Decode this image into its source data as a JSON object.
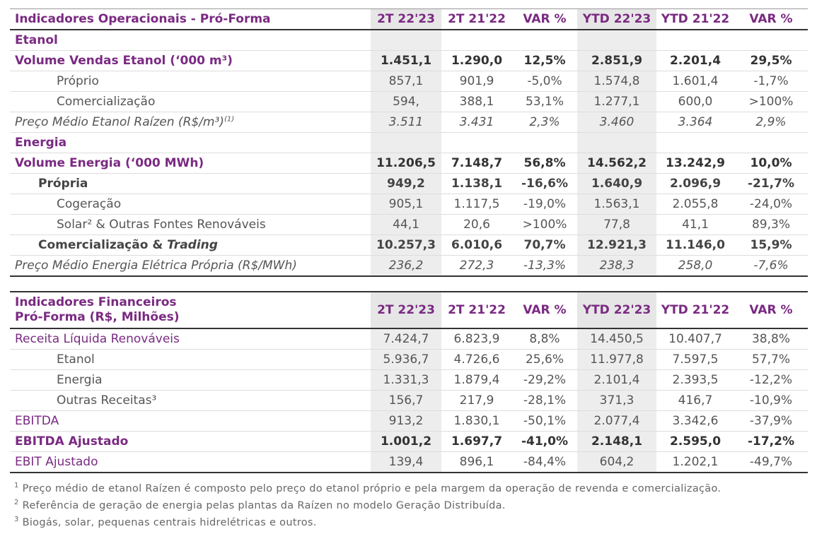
{
  "table1": {
    "header": [
      "Indicadores Operacionais - Pró-Forma",
      "2T 22'23",
      "2T 21'22",
      "VAR %",
      "YTD 22'23",
      "YTD 21'22",
      "VAR %"
    ],
    "rows": [
      {
        "label": "Etanol"
      },
      {
        "label": "Volume Vendas Etanol (‘000 m³)",
        "values": [
          "1.451,1",
          "1.290,0",
          "12,5%",
          "2.851,9",
          "2.201,4",
          "29,5%"
        ]
      },
      {
        "label": "Próprio",
        "values": [
          "857,1",
          "901,9",
          "-5,0%",
          "1.574,8",
          "1.601,4",
          "-1,7%"
        ]
      },
      {
        "label": "Comercialização",
        "values": [
          "594,",
          "388,1",
          "53,1%",
          "1.277,1",
          "600,0",
          ">100%"
        ]
      },
      {
        "label": "Preço Médio Etanol Raízen (R$/m³)",
        "note": "(1)",
        "values": [
          "3.511",
          "3.431",
          "2,3%",
          "3.460",
          "3.364",
          "2,9%"
        ]
      },
      {
        "label": "Energia"
      },
      {
        "label": "Volume Energia (‘000 MWh)",
        "values": [
          "11.206,5",
          "7.148,7",
          "56,8%",
          "14.562,2",
          "13.242,9",
          "10,0%"
        ]
      },
      {
        "label": "Própria",
        "values": [
          "949,2",
          "1.138,1",
          "-16,6%",
          "1.640,9",
          "2.096,9",
          "-21,7%"
        ]
      },
      {
        "label": "Cogeração",
        "values": [
          "905,1",
          "1.117,5",
          "-19,0%",
          "1.563,1",
          "2.055,8",
          "-24,0%"
        ]
      },
      {
        "label": "Solar² & Outras Fontes Renováveis",
        "values": [
          "44,1",
          "20,6",
          ">100%",
          "77,8",
          "41,1",
          "89,3%"
        ]
      },
      {
        "label": "Comercialização &",
        "label_italic": "Trading",
        "values": [
          "10.257,3",
          "6.010,6",
          "70,7%",
          "12.921,3",
          "11.146,0",
          "15,9%"
        ]
      },
      {
        "label": "Preço Médio Energia Elétrica Própria (R$/MWh)",
        "values": [
          "236,2",
          "272,3",
          "-13,3%",
          "238,3",
          "258,0",
          "-7,6%"
        ]
      }
    ]
  },
  "table2": {
    "title": [
      "Indicadores Financeiros",
      "Pró-Forma (R$, Milhões)"
    ],
    "header": [
      "2T 22'23",
      "2T 21'22",
      "VAR %",
      "YTD 22'23",
      "YTD 21'22",
      "VAR %"
    ],
    "rows": [
      {
        "label": "Receita Líquida Renováveis",
        "values": [
          "7.424,7",
          "6.823,9",
          "8,8%",
          "14.450,5",
          "10.407,7",
          "38,8%"
        ]
      },
      {
        "label": "Etanol",
        "values": [
          "5.936,7",
          "4.726,6",
          "25,6%",
          "11.977,8",
          "7.597,5",
          "57,7%"
        ]
      },
      {
        "label": "Energia",
        "values": [
          "1.331,3",
          "1.879,4",
          "-29,2%",
          "2.101,4",
          "2.393,5",
          "-12,2%"
        ]
      },
      {
        "label": "Outras Receitas³",
        "values": [
          "156,7",
          "217,9",
          "-28,1%",
          "371,3",
          "416,7",
          "-10,9%"
        ]
      },
      {
        "label": "EBITDA",
        "values": [
          "913,2",
          "1.830,1",
          "-50,1%",
          "2.077,4",
          "3.342,6",
          "-37,9%"
        ]
      },
      {
        "label": "EBITDA Ajustado",
        "values": [
          "1.001,2",
          "1.697,7",
          "-41,0%",
          "2.148,1",
          "2.595,0",
          "-17,2%"
        ]
      },
      {
        "label": "EBIT Ajustado",
        "values": [
          "139,4",
          "896,1",
          "-84,4%",
          "604,2",
          "1.202,1",
          "-49,7%"
        ]
      }
    ]
  },
  "footnotes": [
    {
      "mark": "1",
      "text": "Preço médio de etanol Raízen é composto pelo preço do etanol próprio e pela margem da operação de revenda e comercialização."
    },
    {
      "mark": "2",
      "text": "Referência de geração de energia pelas plantas da Raízen no modelo Geração Distribuída."
    },
    {
      "mark": "3",
      "text": "Biogás, solar, pequenas centrais hidrelétricas e outros."
    }
  ]
}
